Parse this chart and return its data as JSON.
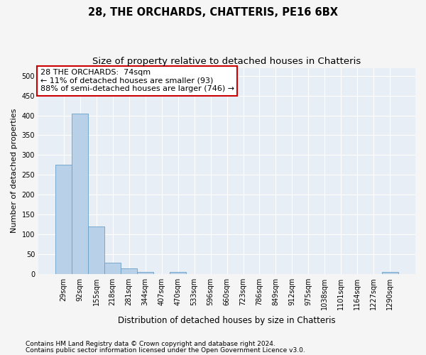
{
  "title": "28, THE ORCHARDS, CHATTERIS, PE16 6BX",
  "subtitle": "Size of property relative to detached houses in Chatteris",
  "xlabel": "Distribution of detached houses by size in Chatteris",
  "ylabel": "Number of detached properties",
  "categories": [
    "29sqm",
    "92sqm",
    "155sqm",
    "218sqm",
    "281sqm",
    "344sqm",
    "407sqm",
    "470sqm",
    "533sqm",
    "596sqm",
    "660sqm",
    "723sqm",
    "786sqm",
    "849sqm",
    "912sqm",
    "975sqm",
    "1038sqm",
    "1101sqm",
    "1164sqm",
    "1227sqm",
    "1290sqm"
  ],
  "values": [
    275,
    405,
    120,
    28,
    14,
    5,
    0,
    5,
    0,
    0,
    0,
    0,
    0,
    0,
    0,
    0,
    0,
    0,
    0,
    0,
    5
  ],
  "bar_color": "#b8d0e8",
  "bar_edge_color": "#6a9fc8",
  "annotation_text": "28 THE ORCHARDS:  74sqm\n← 11% of detached houses are smaller (93)\n88% of semi-detached houses are larger (746) →",
  "annotation_box_color": "#ffffff",
  "annotation_box_edge_color": "#cc0000",
  "ylim": [
    0,
    520
  ],
  "yticks": [
    0,
    50,
    100,
    150,
    200,
    250,
    300,
    350,
    400,
    450,
    500
  ],
  "footnote1": "Contains HM Land Registry data © Crown copyright and database right 2024.",
  "footnote2": "Contains public sector information licensed under the Open Government Licence v3.0.",
  "figure_bg": "#f5f5f5",
  "axes_bg": "#e8eef5",
  "grid_color": "#ffffff",
  "title_fontsize": 10.5,
  "subtitle_fontsize": 9.5,
  "annotation_fontsize": 8,
  "tick_fontsize": 7,
  "ylabel_fontsize": 8,
  "xlabel_fontsize": 8.5,
  "footnote_fontsize": 6.5
}
